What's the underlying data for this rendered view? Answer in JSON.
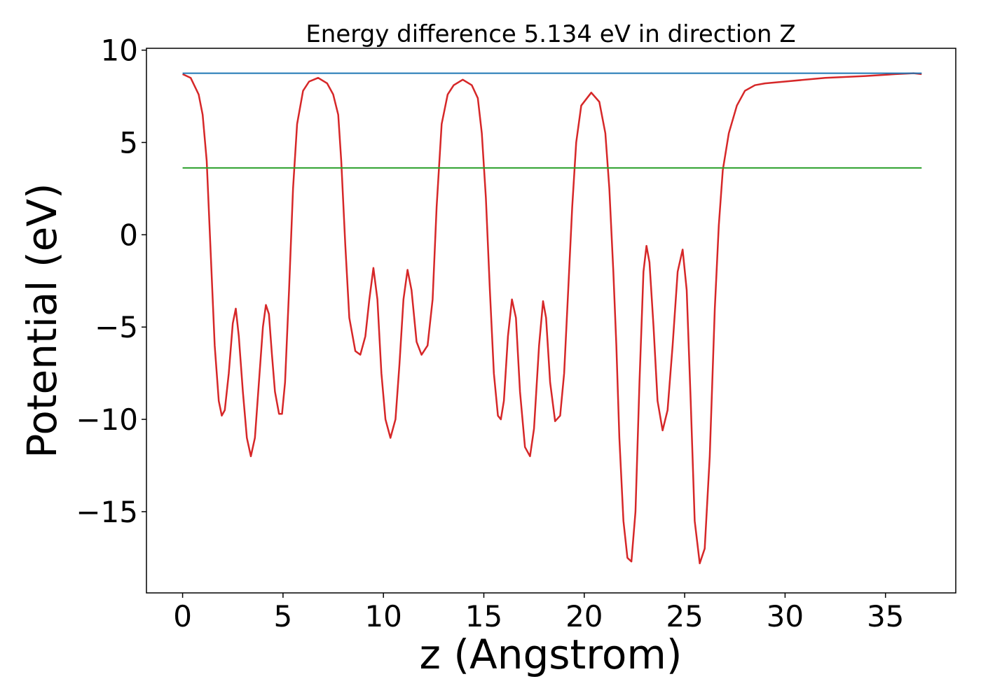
{
  "chart_data": {
    "type": "line",
    "title": "Energy difference 5.134 eV in direction Z",
    "xlabel": "z (Angstrom)",
    "ylabel": "Potential (eV)",
    "xlim": [
      -1.8,
      38.5
    ],
    "ylim": [
      -19.4,
      10.1
    ],
    "xticks": [
      {
        "value": 0,
        "label": "0"
      },
      {
        "value": 5,
        "label": "5"
      },
      {
        "value": 10,
        "label": "10"
      },
      {
        "value": 15,
        "label": "15"
      },
      {
        "value": 20,
        "label": "20"
      },
      {
        "value": 25,
        "label": "25"
      },
      {
        "value": 30,
        "label": "30"
      },
      {
        "value": 35,
        "label": "35"
      }
    ],
    "yticks": [
      {
        "value": 10,
        "label": "10"
      },
      {
        "value": 5,
        "label": "5"
      },
      {
        "value": 0,
        "label": "0"
      },
      {
        "value": -5,
        "label": "−5"
      },
      {
        "value": -10,
        "label": "−10"
      },
      {
        "value": -15,
        "label": "−15"
      }
    ],
    "grid": false,
    "series": [
      {
        "color": "#d62728",
        "x": [
          0.0,
          0.4,
          0.8,
          1.0,
          1.2,
          1.4,
          1.6,
          1.8,
          1.95,
          2.1,
          2.3,
          2.5,
          2.65,
          2.8,
          3.0,
          3.2,
          3.4,
          3.6,
          3.8,
          4.0,
          4.15,
          4.3,
          4.45,
          4.6,
          4.8,
          4.95,
          5.1,
          5.3,
          5.5,
          5.7,
          6.0,
          6.3,
          6.75,
          7.2,
          7.5,
          7.75,
          7.9,
          8.1,
          8.3,
          8.6,
          8.85,
          9.1,
          9.3,
          9.5,
          9.7,
          9.9,
          10.1,
          10.35,
          10.6,
          10.8,
          11.0,
          11.2,
          11.4,
          11.65,
          11.9,
          12.2,
          12.45,
          12.65,
          12.9,
          13.2,
          13.5,
          13.95,
          14.4,
          14.7,
          14.9,
          15.1,
          15.3,
          15.5,
          15.7,
          15.85,
          16.0,
          16.2,
          16.4,
          16.6,
          16.8,
          17.05,
          17.3,
          17.5,
          17.75,
          17.95,
          18.1,
          18.3,
          18.55,
          18.8,
          19.0,
          19.2,
          19.4,
          19.6,
          19.85,
          20.35,
          20.75,
          21.05,
          21.25,
          21.45,
          21.6,
          21.75,
          21.95,
          22.15,
          22.35,
          22.55,
          22.75,
          22.95,
          23.1,
          23.25,
          23.45,
          23.65,
          23.9,
          24.15,
          24.4,
          24.65,
          24.9,
          25.1,
          25.3,
          25.5,
          25.75,
          26.0,
          26.25,
          26.5,
          26.7,
          26.9,
          27.2,
          27.6,
          28.0,
          28.5,
          29.0,
          30.0,
          32.0,
          34.0,
          35.5,
          36.4,
          36.8
        ],
        "y": [
          8.7,
          8.5,
          7.6,
          6.5,
          4.0,
          -1.0,
          -6.0,
          -9.0,
          -9.8,
          -9.5,
          -7.5,
          -4.8,
          -4.0,
          -5.5,
          -8.5,
          -11.0,
          -12.0,
          -11.0,
          -8.0,
          -5.0,
          -3.8,
          -4.3,
          -6.5,
          -8.5,
          -9.7,
          -9.7,
          -8.0,
          -3.0,
          2.5,
          6.0,
          7.8,
          8.3,
          8.5,
          8.2,
          7.6,
          6.5,
          4.0,
          -0.5,
          -4.5,
          -6.3,
          -6.5,
          -5.5,
          -3.5,
          -1.8,
          -3.5,
          -7.5,
          -10.0,
          -11.0,
          -10.0,
          -7.0,
          -3.5,
          -1.9,
          -3.0,
          -5.8,
          -6.5,
          -6.0,
          -3.5,
          1.5,
          6.0,
          7.6,
          8.1,
          8.4,
          8.1,
          7.4,
          5.5,
          2.0,
          -3.0,
          -7.5,
          -9.8,
          -10.0,
          -9.0,
          -5.5,
          -3.5,
          -4.5,
          -8.5,
          -11.5,
          -12.0,
          -10.5,
          -6.0,
          -3.6,
          -4.5,
          -8.0,
          -10.1,
          -9.8,
          -7.5,
          -3.0,
          1.5,
          5.0,
          7.0,
          7.7,
          7.2,
          5.5,
          2.5,
          -2.0,
          -6.0,
          -11.0,
          -15.5,
          -17.5,
          -17.7,
          -15.0,
          -8.0,
          -2.0,
          -0.6,
          -1.5,
          -5.0,
          -9.0,
          -10.6,
          -9.5,
          -6.0,
          -2.0,
          -0.8,
          -3.0,
          -9.0,
          -15.5,
          -17.8,
          -17.0,
          -12.0,
          -4.0,
          0.5,
          3.5,
          5.5,
          7.0,
          7.8,
          8.1,
          8.2,
          8.3,
          8.5,
          8.6,
          8.7,
          8.75,
          8.7
        ]
      },
      {
        "color": "#1f77b4",
        "x": [
          0.0,
          36.8
        ],
        "y": [
          8.75,
          8.75
        ]
      },
      {
        "color": "#2ca02c",
        "x": [
          0.0,
          36.8
        ],
        "y": [
          3.62,
          3.62
        ]
      }
    ]
  }
}
